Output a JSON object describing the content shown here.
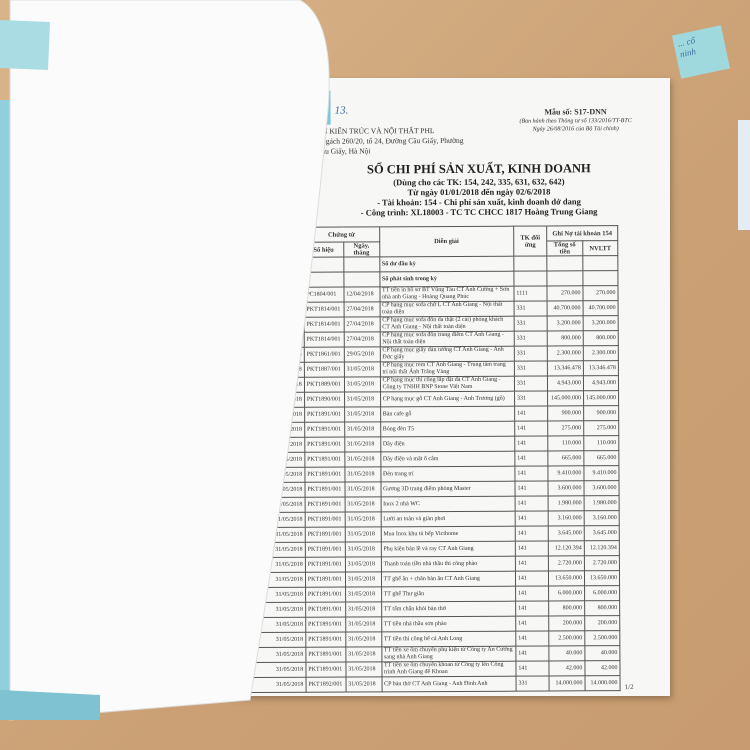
{
  "company": {
    "name": "ÂN KIẾN TRÚC VÀ NỘI THẤT PHL",
    "address1": ", Ngách 260/20, tổ 24, Đường Cầu Giấy, Phường",
    "address2": "Cầu Giấy, Hà Nội"
  },
  "form": {
    "code": "Mẫu số: S17-DNN",
    "note1": "(Ban hành theo Thông tư số 133/2016/TT-BTC",
    "note2": "Ngày 26/08/2016 của Bộ Tài chính)"
  },
  "title": {
    "main": "SỔ CHI PHÍ SẢN XUẤT, KINH DOANH",
    "line1": "(Dùng cho các TK: 154, 242, 335, 631, 632, 642)",
    "line2": "Từ ngày 01/01/2018 đến ngày 02/6/2018",
    "line3": "- Tài khoản: 154 - Chi phí sản xuất, kinh doanh dở dang",
    "line4": "- Công trình: XL18003 - TC TC CHCC 1817 Hoàng Trung Giang"
  },
  "headers": {
    "chung_tu": "Chứng từ",
    "so_hieu": "Số hiệu",
    "ngay": "Ngày, tháng",
    "dien_giai": "Diễn giải",
    "tk": "TK đối ứng",
    "ghi_no": "Ghi Nợ tài khoản 154",
    "tong": "Tổng số tiền",
    "nvltt": "NVLTT"
  },
  "opening": "Số dư đầu kỳ",
  "period": "Số phát sinh trong kỳ",
  "rows": [
    [
      "",
      "PC1804/001",
      "12/04/2018",
      "TT tiền in hồ sơ BT Vũng Tàu CT Anh Cường + Sơn nhà anh Giang - Hoàng Quang Phúc",
      "1111",
      "270.000",
      "270.000"
    ],
    [
      "8",
      "PKT1814/001",
      "27/04/2018",
      "CP hạng mục sofa chữ L CT Anh Giang - Nội thất toàn diện",
      "331",
      "40.700.000",
      "40.700.000"
    ],
    [
      "8",
      "PKT1814/001",
      "27/04/2018",
      "CP hạng mục sofa đôn da thật (2 cái) phòng khách CT Anh Giang - Nội thất toàn diện",
      "331",
      "3.200.000",
      "3.200.000"
    ],
    [
      "18",
      "PKT1814/001",
      "27/04/2018",
      "CP hạng mục sofa đôn trang điểm CT Anh Giang - Nội thất toàn diện",
      "331",
      "800.000",
      "800.000"
    ],
    [
      "018",
      "PKT1861/001",
      "29/05/2018",
      "CP hạng mục giấy dán tường CT Anh Giang - Anh Đức giấy",
      "331",
      "2.300.000",
      "2.300.000"
    ],
    [
      "2018",
      "PKT1887/001",
      "31/05/2018",
      "CP hạng mục rem CT Anh Giang - Trung tâm trang trí nội thất Ánh Trăng Vàng",
      "331",
      "13.346.478",
      "13.346.478"
    ],
    [
      "2018",
      "PKT1889/001",
      "31/05/2018",
      "CP hạng mục thi công lắp đặt đá CT Anh Giang - Công ty TNHH BNP Stone Việt Nam",
      "331",
      "4.943.000",
      "4.943.000"
    ],
    [
      "/2018",
      "PKT1890/001",
      "31/05/2018",
      "CP hạng mục gỗ CT Anh Giang - Anh Trương (gỗ)",
      "331",
      "145.000.000",
      "145.000.000"
    ],
    [
      "5/2018",
      "PKT1891/001",
      "31/05/2018",
      "Bàn cafe gỗ",
      "141",
      "900.000",
      "900.000"
    ],
    [
      "/5/2018",
      "PKT1891/001",
      "31/05/2018",
      "Bóng đèn T5",
      "141",
      "275.000",
      "275.000"
    ],
    [
      "05/2018",
      "PKT1891/001",
      "31/05/2018",
      "Dây điện",
      "141",
      "110.000",
      "110.000"
    ],
    [
      "05/2018",
      "PKT1891/001",
      "31/05/2018",
      "Dây điện và mặt ổ cắm",
      "141",
      "665.000",
      "665.000"
    ],
    [
      "05/2018",
      "PKT1891/001",
      "31/05/2018",
      "Đèn trang trí",
      "141",
      "9.410.000",
      "9.410.000"
    ],
    [
      "1/05/2018",
      "PKT1891/001",
      "31/05/2018",
      "Gương 3D trang điểm phòng Master",
      "141",
      "3.600.000",
      "3.600.000"
    ],
    [
      "1/05/2018",
      "PKT1891/001",
      "31/05/2018",
      "Inox 2 nhà WC",
      "141",
      "1.980.000",
      "1.980.000"
    ],
    [
      "31/05/2018",
      "PKT1891/001",
      "31/05/2018",
      "Lưới an toàn và giàn phơi",
      "141",
      "3.160.000",
      "3.160.000"
    ],
    [
      "31/05/2018",
      "PKT1891/001",
      "31/05/2018",
      "Mua Inox khu tủ bếp Victhome",
      "141",
      "3.645.000",
      "3.645.000"
    ],
    [
      "31/05/2018",
      "PKT1891/001",
      "31/05/2018",
      "Phụ kiện bản lề và ray CT Anh Giang",
      "141",
      "12.120.394",
      "12.120.394"
    ],
    [
      "31/05/2018",
      "PKT1891/001",
      "31/05/2018",
      "Thanh toán tiền nhà thầu thi công phào",
      "141",
      "2.720.000",
      "2.720.000"
    ],
    [
      "31/05/2018",
      "PKT1891/001",
      "31/05/2018",
      "TT ghế ăn + chân bàn ăn CT Anh Giang",
      "141",
      "13.650.000",
      "13.650.000"
    ],
    [
      "31/05/2018",
      "PKT1891/001",
      "31/05/2018",
      "TT ghế Thư giãn",
      "141",
      "6.000.000",
      "6.000.000"
    ],
    [
      "31/05/2018",
      "PKT1891/001",
      "31/05/2018",
      "TT tấm chắn khói bàn thờ",
      "141",
      "800.000",
      "800.000"
    ],
    [
      "31/05/2018",
      "PKT1891/001",
      "31/05/2018",
      "TT tiền nhà thầu sơn phào",
      "141",
      "200.000",
      "200.000"
    ],
    [
      "31/05/2018",
      "PKT1891/001",
      "31/05/2018",
      "TT tiền thi công bể cá Anh Long",
      "141",
      "2.500.000",
      "2.500.000"
    ],
    [
      "31/05/2018",
      "PKT1891/001",
      "31/05/2018",
      "TT tiền xe ôm chuyển phụ kiện từ Công ty An Cường sang nhà Anh Giang",
      "141",
      "40.000",
      "40.000"
    ],
    [
      "31/05/2018",
      "PKT1891/001",
      "31/05/2018",
      "TT tiền xe ôm chuyển khoan từ Công ty lên Công trình Anh Giang để Khoan",
      "141",
      "42.000",
      "42.000"
    ],
    [
      "31/05/2018",
      "PKT1892/001",
      "31/05/2018",
      "CP bàn thờ CT Anh Giang - Anh Đinh Anh",
      "331",
      "14.000.000",
      "14.000.000"
    ]
  ],
  "page": "1/2",
  "handwriting": {
    "top": "13.",
    "note": "... cổ\nninh"
  }
}
